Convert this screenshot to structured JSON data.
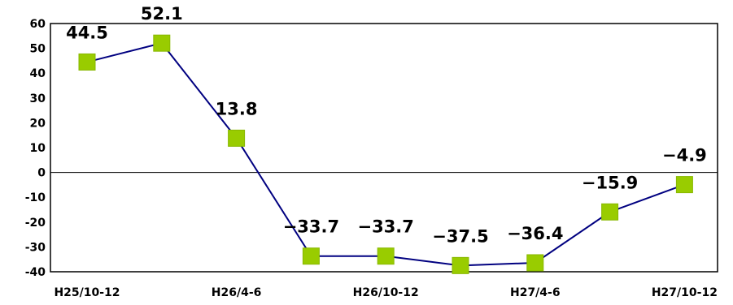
{
  "chart_data": {
    "type": "line",
    "title": "",
    "xlabel": "",
    "ylabel": "",
    "ylim": [
      -40,
      60
    ],
    "yticks": [
      "60",
      "50",
      "40",
      "30",
      "20",
      "10",
      "0",
      "-10",
      "-20",
      "-30",
      "-40"
    ],
    "grid": false,
    "zero_line": true,
    "x_labels": [
      "H25/10-12",
      "",
      "H26/4-6",
      "",
      "H26/10-12",
      "",
      "H27/4-6",
      "",
      "H27/10-12"
    ],
    "series": [
      {
        "values": [
          44.5,
          52.1,
          13.8,
          -33.7,
          -33.7,
          -37.5,
          -36.4,
          -15.9,
          -4.9
        ],
        "data_labels": [
          "44.5",
          "52.1",
          "13.8",
          "−33.7",
          "−33.7",
          "−37.5",
          "−36.4",
          "−15.9",
          "−4.9"
        ],
        "line_color": "#000080",
        "marker_color": "#99cc00"
      }
    ]
  }
}
